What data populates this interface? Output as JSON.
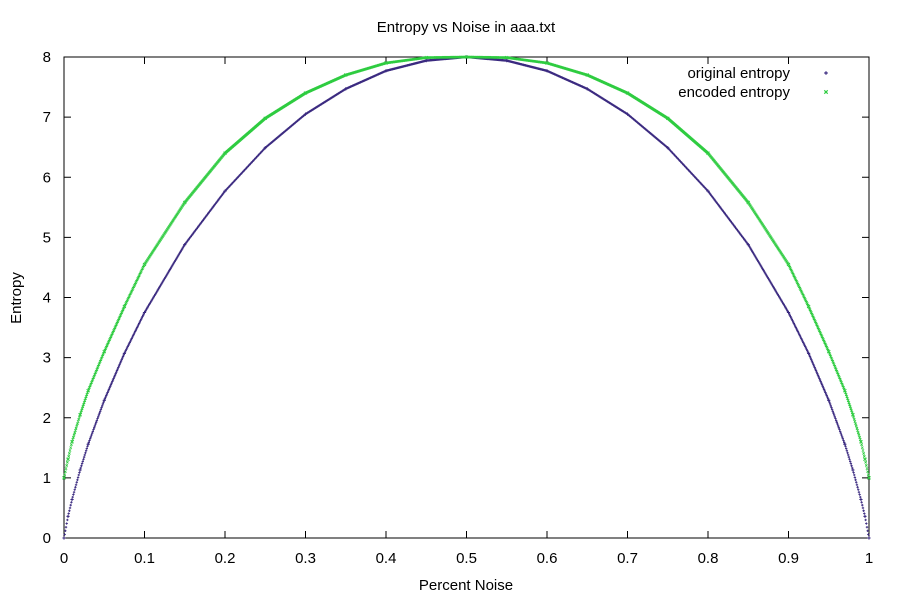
{
  "chart_data": {
    "type": "scatter",
    "title": "Entropy vs Noise in aaa.txt",
    "xlabel": "Percent Noise",
    "ylabel": "Entropy",
    "xlim": [
      0,
      1
    ],
    "ylim": [
      0,
      8
    ],
    "xticks": [
      "0",
      "0.1",
      "0.2",
      "0.3",
      "0.4",
      "0.5",
      "0.6",
      "0.7",
      "0.8",
      "0.9",
      "1"
    ],
    "yticks": [
      "0",
      "1",
      "2",
      "3",
      "4",
      "5",
      "6",
      "7",
      "8"
    ],
    "grid": false,
    "legend_position": "top-right",
    "series": [
      {
        "name": "original entropy",
        "color": "#3b2a80",
        "marker": "plus",
        "x": [
          0,
          0.005,
          0.01,
          0.02,
          0.03,
          0.05,
          0.075,
          0.1,
          0.15,
          0.2,
          0.25,
          0.3,
          0.35,
          0.4,
          0.45,
          0.5,
          0.55,
          0.6,
          0.65,
          0.7,
          0.75,
          0.8,
          0.85,
          0.9,
          0.925,
          0.95,
          0.97,
          0.98,
          0.99,
          0.995,
          1
        ],
        "y": [
          0,
          0.36,
          0.64,
          1.13,
          1.56,
          2.29,
          3.07,
          3.75,
          4.88,
          5.77,
          6.49,
          7.05,
          7.47,
          7.77,
          7.94,
          8.0,
          7.94,
          7.77,
          7.47,
          7.05,
          6.49,
          5.77,
          4.88,
          3.75,
          3.07,
          2.29,
          1.56,
          1.13,
          0.64,
          0.36,
          0
        ]
      },
      {
        "name": "encoded entropy",
        "color": "#2ecc40",
        "marker": "cross",
        "x": [
          0,
          0.005,
          0.01,
          0.02,
          0.03,
          0.05,
          0.075,
          0.1,
          0.15,
          0.2,
          0.25,
          0.3,
          0.35,
          0.4,
          0.45,
          0.5,
          0.55,
          0.6,
          0.65,
          0.7,
          0.75,
          0.8,
          0.85,
          0.9,
          0.925,
          0.95,
          0.97,
          0.98,
          0.99,
          0.995,
          1
        ],
        "y": [
          1.0,
          1.31,
          1.6,
          2.05,
          2.45,
          3.1,
          3.85,
          4.55,
          5.58,
          6.4,
          6.98,
          7.4,
          7.7,
          7.9,
          7.99,
          8.0,
          7.99,
          7.9,
          7.7,
          7.4,
          6.98,
          6.4,
          5.58,
          4.55,
          3.85,
          3.1,
          2.45,
          2.05,
          1.6,
          1.31,
          1.0
        ]
      }
    ]
  }
}
